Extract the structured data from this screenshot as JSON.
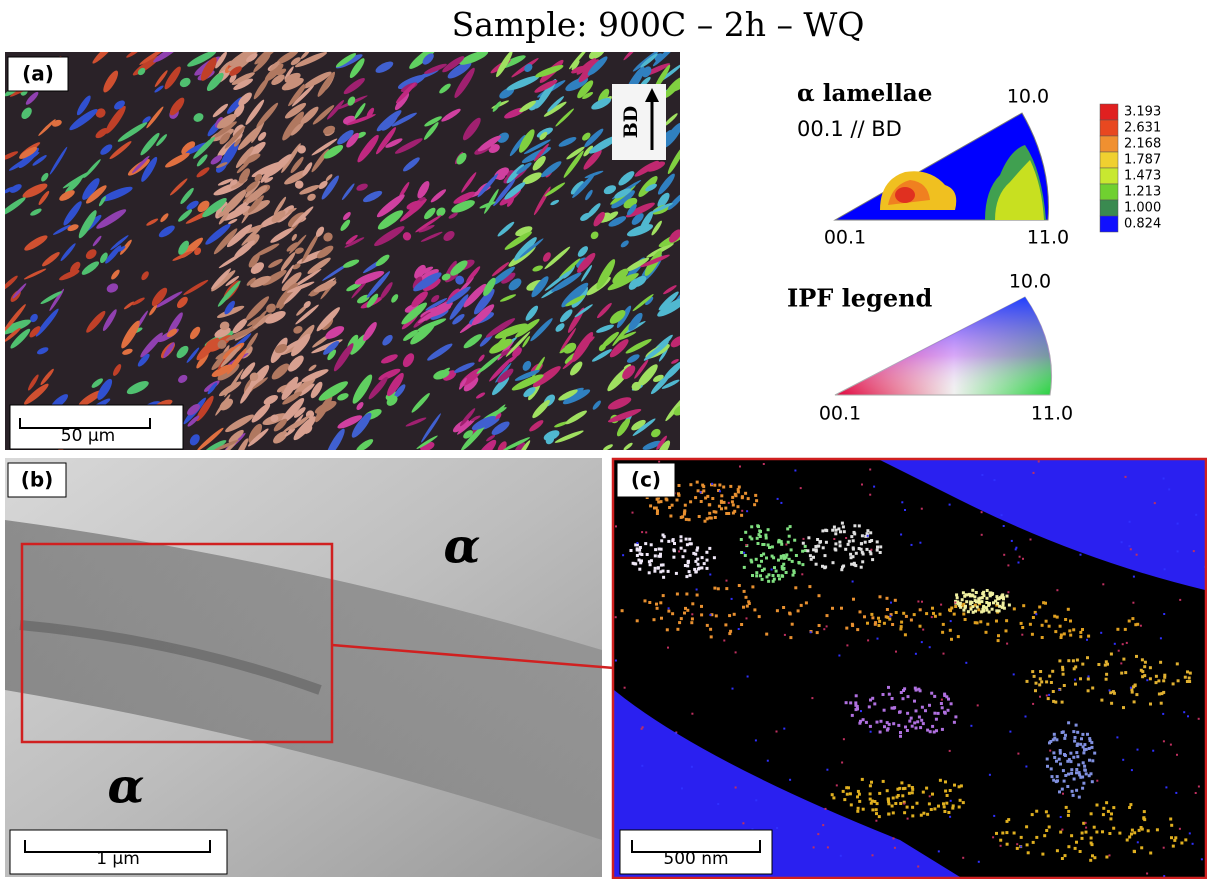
{
  "title": "Sample: 900C – 2h – WQ",
  "panel_a": {
    "label": "(a)",
    "direction": "BD",
    "scale_bar": "50 µm"
  },
  "pole_figure": {
    "title": "α lamellae",
    "subtitle": "00.1 // BD",
    "corners": [
      "10.0",
      "00.1",
      "11.0"
    ],
    "colorbar": [
      "3.193",
      "2.631",
      "2.168",
      "1.787",
      "1.473",
      "1.213",
      "1.000",
      "0.824"
    ]
  },
  "ipf_legend": {
    "title": "IPF legend",
    "corners": [
      "10.0",
      "00.1",
      "11.0"
    ]
  },
  "panel_b": {
    "label": "(b)",
    "phase_labels": [
      "α",
      "α"
    ],
    "scale_bar": "1 µm"
  },
  "panel_c": {
    "label": "(c)",
    "scale_bar": "500 nm"
  }
}
